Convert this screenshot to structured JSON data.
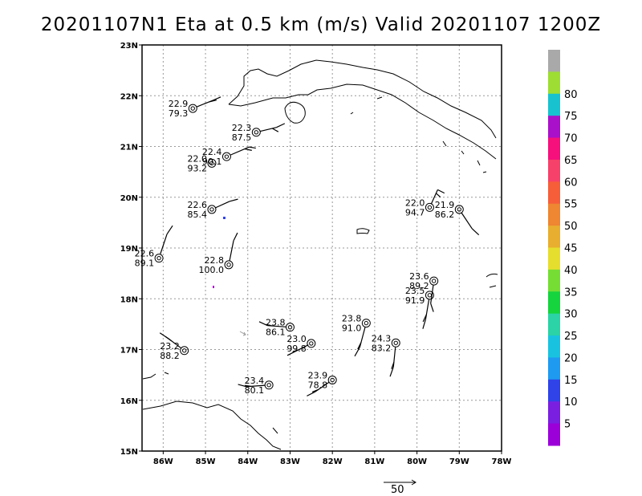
{
  "title": "20201107N1 Eta at 0.5 km (m/s) Valid 20201107  1200Z",
  "map": {
    "lon_range": [
      -86.5,
      -78
    ],
    "lat_range": [
      15,
      23
    ],
    "x_ticks": [
      {
        "lon": -86,
        "label": "86W"
      },
      {
        "lon": -85,
        "label": "85W"
      },
      {
        "lon": -84,
        "label": "84W"
      },
      {
        "lon": -83,
        "label": "83W"
      },
      {
        "lon": -82,
        "label": "82W"
      },
      {
        "lon": -81,
        "label": "81W"
      },
      {
        "lon": -80,
        "label": "80W"
      },
      {
        "lon": -79,
        "label": "79W"
      },
      {
        "lon": -78,
        "label": "78W"
      }
    ],
    "y_ticks": [
      {
        "lat": 15,
        "label": "15N"
      },
      {
        "lat": 16,
        "label": "16N"
      },
      {
        "lat": 17,
        "label": "17N"
      },
      {
        "lat": 18,
        "label": "18N"
      },
      {
        "lat": 19,
        "label": "19N"
      },
      {
        "lat": 20,
        "label": "20N"
      },
      {
        "lat": 21,
        "label": "21N"
      },
      {
        "lat": 22,
        "label": "22N"
      },
      {
        "lat": 23,
        "label": "23N"
      }
    ],
    "grid": true
  },
  "stations": [
    {
      "lon": -85.3,
      "lat": 21.75,
      "temp": "22.9",
      "rh": "79.3"
    },
    {
      "lon": -83.8,
      "lat": 21.28,
      "temp": "22.3",
      "rh": "87.5"
    },
    {
      "lon": -84.5,
      "lat": 20.8,
      "temp": "22.4",
      "rh": "90.1"
    },
    {
      "lon": -84.85,
      "lat": 20.67,
      "temp": "22.0",
      "rh": "93.2"
    },
    {
      "lon": -84.85,
      "lat": 19.76,
      "temp": "22.6",
      "rh": "85.4"
    },
    {
      "lon": -86.1,
      "lat": 18.8,
      "temp": "22.6",
      "rh": "89.1"
    },
    {
      "lon": -84.45,
      "lat": 18.67,
      "temp": "22.8",
      "rh": "100.0"
    },
    {
      "lon": -83.0,
      "lat": 17.44,
      "temp": "23.8",
      "rh": "86.1"
    },
    {
      "lon": -82.5,
      "lat": 17.12,
      "temp": "23.0",
      "rh": "99.8"
    },
    {
      "lon": -85.5,
      "lat": 16.98,
      "temp": "23.2",
      "rh": "88.2"
    },
    {
      "lon": -83.5,
      "lat": 16.3,
      "temp": "23.4",
      "rh": "80.1"
    },
    {
      "lon": -82.0,
      "lat": 16.4,
      "temp": "23.9",
      "rh": "78.8"
    },
    {
      "lon": -81.2,
      "lat": 17.52,
      "temp": "23.8",
      "rh": "91.0"
    },
    {
      "lon": -80.5,
      "lat": 17.13,
      "temp": "24.3",
      "rh": "83.2"
    },
    {
      "lon": -79.7,
      "lat": 18.07,
      "temp": "23.5",
      "rh": "91.9"
    },
    {
      "lon": -79.6,
      "lat": 18.35,
      "temp": "23.6",
      "rh": "89.2"
    },
    {
      "lon": -79.7,
      "lat": 19.8,
      "temp": "22.0",
      "rh": "94.7"
    },
    {
      "lon": -79.0,
      "lat": 19.76,
      "temp": "21.9",
      "rh": "86.2"
    }
  ],
  "colorbar": {
    "labels": [
      "5",
      "10",
      "15",
      "20",
      "25",
      "30",
      "35",
      "40",
      "45",
      "50",
      "55",
      "60",
      "65",
      "70",
      "75",
      "80"
    ],
    "colors": [
      "#9b00d9",
      "#7a1fe0",
      "#2f43e8",
      "#1e9af0",
      "#19c3e0",
      "#2bd3a6",
      "#16d43e",
      "#76dd35",
      "#e6de2e",
      "#e8ae2f",
      "#ee8632",
      "#f65e3a",
      "#f6426a",
      "#f5107c",
      "#a811c9",
      "#18c2cf",
      "#9ddd34",
      "#a9a9a9"
    ]
  },
  "scale_label": "50"
}
